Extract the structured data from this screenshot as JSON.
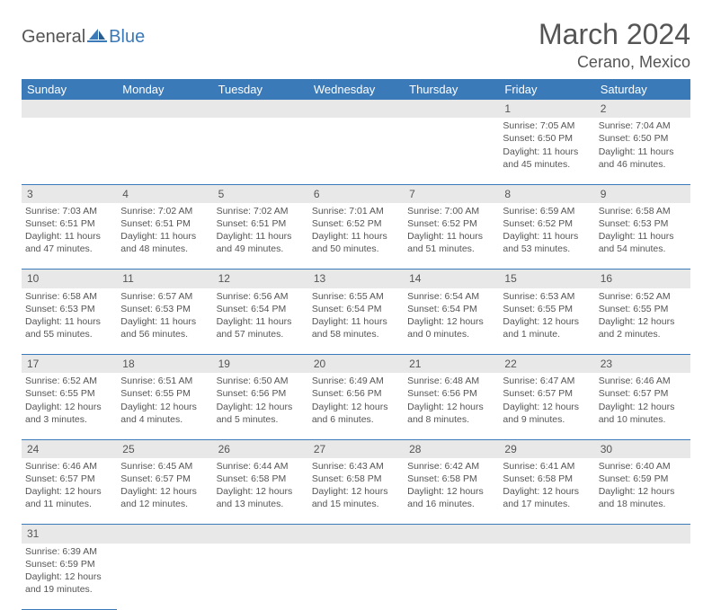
{
  "branding": {
    "logo_text_1": "General",
    "logo_text_2": "Blue",
    "logo_color_1": "#555555",
    "logo_color_2": "#3b7ab8"
  },
  "header": {
    "month_title": "March 2024",
    "location": "Cerano, Mexico"
  },
  "colors": {
    "header_bg": "#3b7ab8",
    "header_text": "#ffffff",
    "daynum_bg": "#e8e8e8",
    "text": "#555555",
    "rule": "#3b7ab8",
    "background": "#ffffff"
  },
  "typography": {
    "title_fontsize": 32,
    "location_fontsize": 18,
    "weekday_fontsize": 13,
    "daynum_fontsize": 12,
    "body_fontsize": 10.5
  },
  "weekdays": [
    "Sunday",
    "Monday",
    "Tuesday",
    "Wednesday",
    "Thursday",
    "Friday",
    "Saturday"
  ],
  "weeks": [
    [
      null,
      null,
      null,
      null,
      null,
      {
        "day": "1",
        "sunrise": "Sunrise: 7:05 AM",
        "sunset": "Sunset: 6:50 PM",
        "daylight": "Daylight: 11 hours and 45 minutes."
      },
      {
        "day": "2",
        "sunrise": "Sunrise: 7:04 AM",
        "sunset": "Sunset: 6:50 PM",
        "daylight": "Daylight: 11 hours and 46 minutes."
      }
    ],
    [
      {
        "day": "3",
        "sunrise": "Sunrise: 7:03 AM",
        "sunset": "Sunset: 6:51 PM",
        "daylight": "Daylight: 11 hours and 47 minutes."
      },
      {
        "day": "4",
        "sunrise": "Sunrise: 7:02 AM",
        "sunset": "Sunset: 6:51 PM",
        "daylight": "Daylight: 11 hours and 48 minutes."
      },
      {
        "day": "5",
        "sunrise": "Sunrise: 7:02 AM",
        "sunset": "Sunset: 6:51 PM",
        "daylight": "Daylight: 11 hours and 49 minutes."
      },
      {
        "day": "6",
        "sunrise": "Sunrise: 7:01 AM",
        "sunset": "Sunset: 6:52 PM",
        "daylight": "Daylight: 11 hours and 50 minutes."
      },
      {
        "day": "7",
        "sunrise": "Sunrise: 7:00 AM",
        "sunset": "Sunset: 6:52 PM",
        "daylight": "Daylight: 11 hours and 51 minutes."
      },
      {
        "day": "8",
        "sunrise": "Sunrise: 6:59 AM",
        "sunset": "Sunset: 6:52 PM",
        "daylight": "Daylight: 11 hours and 53 minutes."
      },
      {
        "day": "9",
        "sunrise": "Sunrise: 6:58 AM",
        "sunset": "Sunset: 6:53 PM",
        "daylight": "Daylight: 11 hours and 54 minutes."
      }
    ],
    [
      {
        "day": "10",
        "sunrise": "Sunrise: 6:58 AM",
        "sunset": "Sunset: 6:53 PM",
        "daylight": "Daylight: 11 hours and 55 minutes."
      },
      {
        "day": "11",
        "sunrise": "Sunrise: 6:57 AM",
        "sunset": "Sunset: 6:53 PM",
        "daylight": "Daylight: 11 hours and 56 minutes."
      },
      {
        "day": "12",
        "sunrise": "Sunrise: 6:56 AM",
        "sunset": "Sunset: 6:54 PM",
        "daylight": "Daylight: 11 hours and 57 minutes."
      },
      {
        "day": "13",
        "sunrise": "Sunrise: 6:55 AM",
        "sunset": "Sunset: 6:54 PM",
        "daylight": "Daylight: 11 hours and 58 minutes."
      },
      {
        "day": "14",
        "sunrise": "Sunrise: 6:54 AM",
        "sunset": "Sunset: 6:54 PM",
        "daylight": "Daylight: 12 hours and 0 minutes."
      },
      {
        "day": "15",
        "sunrise": "Sunrise: 6:53 AM",
        "sunset": "Sunset: 6:55 PM",
        "daylight": "Daylight: 12 hours and 1 minute."
      },
      {
        "day": "16",
        "sunrise": "Sunrise: 6:52 AM",
        "sunset": "Sunset: 6:55 PM",
        "daylight": "Daylight: 12 hours and 2 minutes."
      }
    ],
    [
      {
        "day": "17",
        "sunrise": "Sunrise: 6:52 AM",
        "sunset": "Sunset: 6:55 PM",
        "daylight": "Daylight: 12 hours and 3 minutes."
      },
      {
        "day": "18",
        "sunrise": "Sunrise: 6:51 AM",
        "sunset": "Sunset: 6:55 PM",
        "daylight": "Daylight: 12 hours and 4 minutes."
      },
      {
        "day": "19",
        "sunrise": "Sunrise: 6:50 AM",
        "sunset": "Sunset: 6:56 PM",
        "daylight": "Daylight: 12 hours and 5 minutes."
      },
      {
        "day": "20",
        "sunrise": "Sunrise: 6:49 AM",
        "sunset": "Sunset: 6:56 PM",
        "daylight": "Daylight: 12 hours and 6 minutes."
      },
      {
        "day": "21",
        "sunrise": "Sunrise: 6:48 AM",
        "sunset": "Sunset: 6:56 PM",
        "daylight": "Daylight: 12 hours and 8 minutes."
      },
      {
        "day": "22",
        "sunrise": "Sunrise: 6:47 AM",
        "sunset": "Sunset: 6:57 PM",
        "daylight": "Daylight: 12 hours and 9 minutes."
      },
      {
        "day": "23",
        "sunrise": "Sunrise: 6:46 AM",
        "sunset": "Sunset: 6:57 PM",
        "daylight": "Daylight: 12 hours and 10 minutes."
      }
    ],
    [
      {
        "day": "24",
        "sunrise": "Sunrise: 6:46 AM",
        "sunset": "Sunset: 6:57 PM",
        "daylight": "Daylight: 12 hours and 11 minutes."
      },
      {
        "day": "25",
        "sunrise": "Sunrise: 6:45 AM",
        "sunset": "Sunset: 6:57 PM",
        "daylight": "Daylight: 12 hours and 12 minutes."
      },
      {
        "day": "26",
        "sunrise": "Sunrise: 6:44 AM",
        "sunset": "Sunset: 6:58 PM",
        "daylight": "Daylight: 12 hours and 13 minutes."
      },
      {
        "day": "27",
        "sunrise": "Sunrise: 6:43 AM",
        "sunset": "Sunset: 6:58 PM",
        "daylight": "Daylight: 12 hours and 15 minutes."
      },
      {
        "day": "28",
        "sunrise": "Sunrise: 6:42 AM",
        "sunset": "Sunset: 6:58 PM",
        "daylight": "Daylight: 12 hours and 16 minutes."
      },
      {
        "day": "29",
        "sunrise": "Sunrise: 6:41 AM",
        "sunset": "Sunset: 6:58 PM",
        "daylight": "Daylight: 12 hours and 17 minutes."
      },
      {
        "day": "30",
        "sunrise": "Sunrise: 6:40 AM",
        "sunset": "Sunset: 6:59 PM",
        "daylight": "Daylight: 12 hours and 18 minutes."
      }
    ],
    [
      {
        "day": "31",
        "sunrise": "Sunrise: 6:39 AM",
        "sunset": "Sunset: 6:59 PM",
        "daylight": "Daylight: 12 hours and 19 minutes."
      },
      null,
      null,
      null,
      null,
      null,
      null
    ]
  ]
}
